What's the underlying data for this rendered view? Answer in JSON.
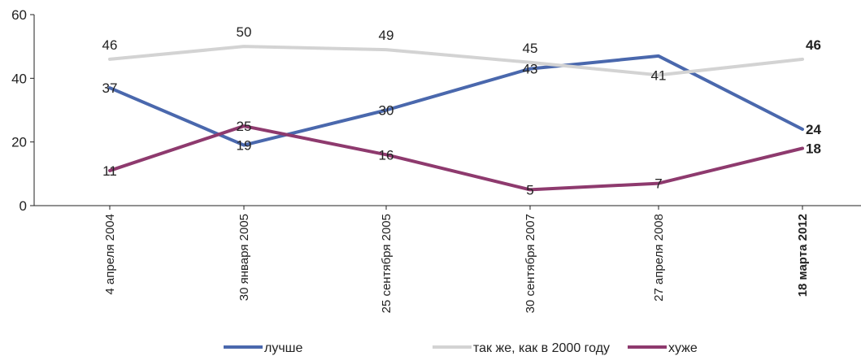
{
  "chart_data": {
    "type": "line",
    "categories": [
      "4 апреля 2004",
      "30 января 2005",
      "25 сентября 2005",
      "30 сентября 2007",
      "27 апреля 2008",
      "18 марта 2012"
    ],
    "highlight_category": "18 марта 2012",
    "ylim": [
      0,
      60
    ],
    "yticks": [
      0,
      20,
      40,
      60
    ],
    "grid": false,
    "legend_position": "bottom",
    "series": [
      {
        "name": "лучше",
        "color": "#4a68ad",
        "values": [
          37,
          19,
          30,
          43,
          47,
          24
        ],
        "labels": [
          "37",
          "19",
          "30",
          "43",
          "",
          "24"
        ]
      },
      {
        "name": "так же, как в 2000 году",
        "color": "#d3d3d3",
        "values": [
          46,
          50,
          49,
          45,
          41,
          46
        ],
        "labels": [
          "46",
          "50",
          "49",
          "45",
          "41",
          "46"
        ]
      },
      {
        "name": "хуже",
        "color": "#8e3a6e",
        "values": [
          11,
          25,
          16,
          5,
          7,
          18
        ],
        "labels": [
          "11",
          "25",
          "16",
          "5",
          "7",
          "18"
        ]
      }
    ]
  }
}
